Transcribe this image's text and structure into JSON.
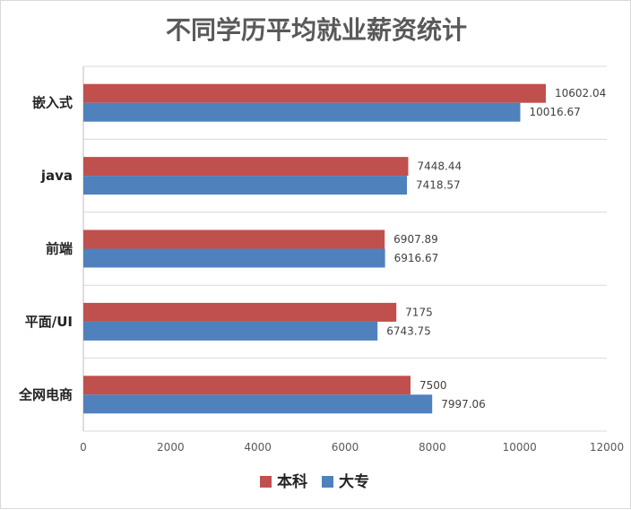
{
  "chart_data": {
    "type": "bar",
    "orientation": "horizontal",
    "title": "不同学历平均就业薪资统计",
    "categories": [
      "嵌入式",
      "java",
      "前端",
      "平面/UI",
      "全网电商"
    ],
    "series": [
      {
        "name": "本科",
        "color": "#c0504d",
        "values": [
          10602.04,
          7448.44,
          6907.89,
          7175,
          7500
        ]
      },
      {
        "name": "大专",
        "color": "#4f81bd",
        "values": [
          10016.67,
          7418.57,
          6916.67,
          6743.75,
          7997.06
        ]
      }
    ],
    "x_ticks": [
      "0",
      "2000",
      "4000",
      "6000",
      "8000",
      "10000",
      "12000"
    ],
    "xlim": [
      0,
      12000
    ],
    "grid": true,
    "legend": "bottom"
  }
}
